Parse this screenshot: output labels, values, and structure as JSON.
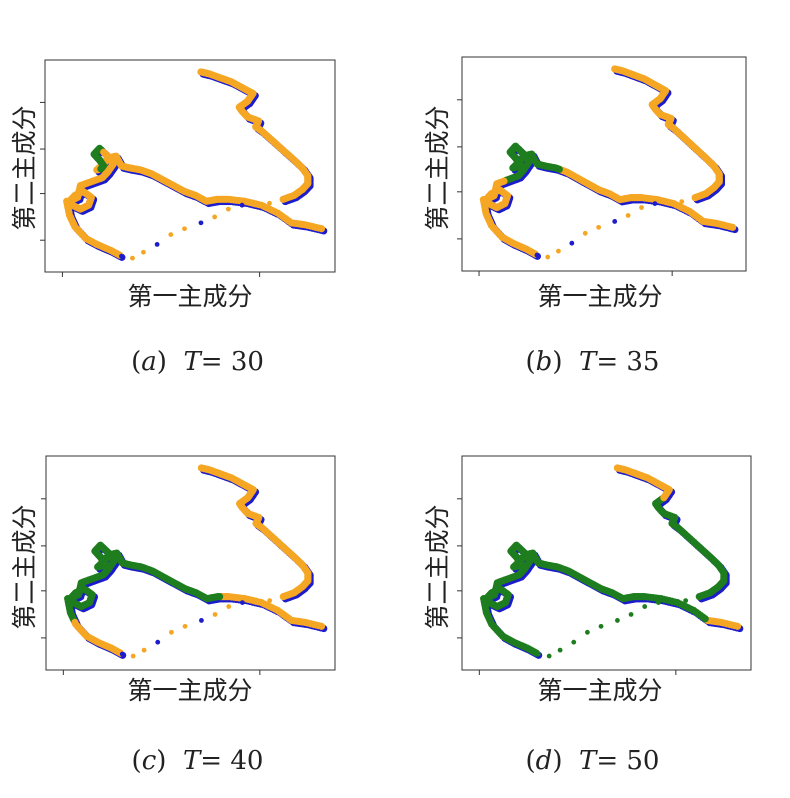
{
  "colors": {
    "blue": "#1c1ccc",
    "orange": "#f5a623",
    "green": "#1e7d1e",
    "frame": "#333333"
  },
  "chart_data": [
    {
      "type": "scatter",
      "title": "",
      "xlabel": "第一主成分",
      "ylabel": "第二主成分",
      "caption": {
        "letter": "a",
        "var": "T",
        "eq": "= 30"
      },
      "green_range": [
        0.3,
        0.36
      ],
      "grid": false,
      "legend": "none"
    },
    {
      "type": "scatter",
      "title": "",
      "xlabel": "第一主成分",
      "ylabel": "第二主成分",
      "caption": {
        "letter": "b",
        "var": "T",
        "eq": "= 35"
      },
      "green_range": [
        0.2,
        0.43
      ],
      "grid": false,
      "legend": "none"
    },
    {
      "type": "scatter",
      "title": "",
      "xlabel": "第一主成分",
      "ylabel": "第二主成分",
      "caption": {
        "letter": "c",
        "var": "T",
        "eq": "= 40"
      },
      "green_range": [
        0.1,
        0.6
      ],
      "grid": false,
      "legend": "none"
    },
    {
      "type": "scatter",
      "title": "",
      "xlabel": "第一主成分",
      "ylabel": "第二主成分",
      "caption": {
        "letter": "d",
        "var": "T",
        "eq": "= 50"
      },
      "green_range": [
        0.03,
        0.91
      ],
      "grid": false,
      "legend": "none"
    }
  ]
}
